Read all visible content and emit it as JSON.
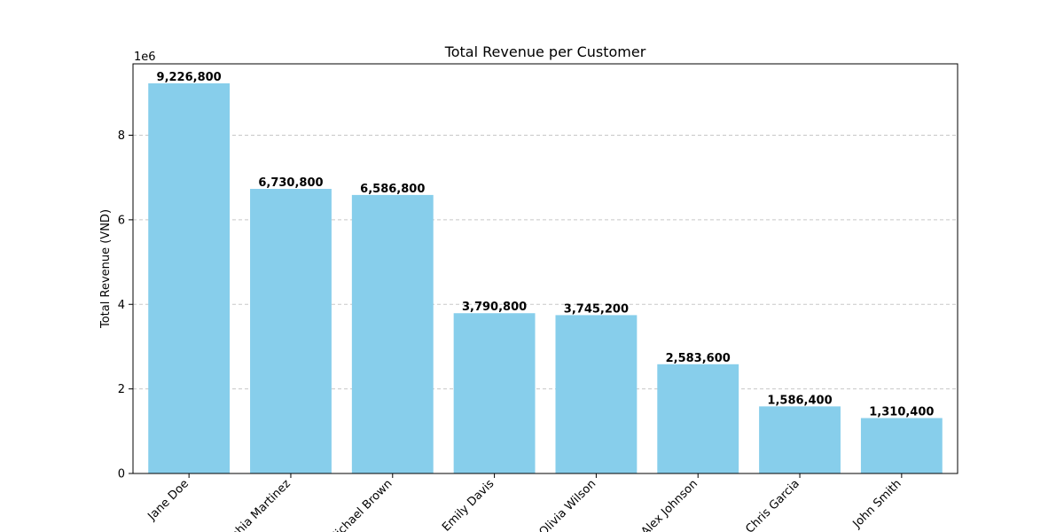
{
  "chart_data": {
    "type": "bar",
    "title": "Total Revenue per Customer",
    "xlabel": "",
    "ylabel": "Total Revenue (VND)",
    "scale_label": "1e6",
    "categories": [
      "Jane Doe",
      "Sophia Martinez",
      "Michael Brown",
      "Emily Davis",
      "Olivia Wilson",
      "Alex Johnson",
      "Chris Garcia",
      "John Smith"
    ],
    "values": [
      9226800,
      6730800,
      6586800,
      3790800,
      3745200,
      2583600,
      1586400,
      1310400
    ],
    "value_labels": [
      "9,226,800",
      "6,730,800",
      "6,586,800",
      "3,790,800",
      "3,745,200",
      "2,583,600",
      "1,586,400",
      "1,310,400"
    ],
    "ylim": [
      0,
      9688140
    ],
    "yticks": [
      0,
      2000000,
      4000000,
      6000000,
      8000000
    ],
    "ytick_labels": [
      "0",
      "2",
      "4",
      "6",
      "8"
    ],
    "grid": "y-dashed",
    "bar_color": "#87CEEB"
  }
}
